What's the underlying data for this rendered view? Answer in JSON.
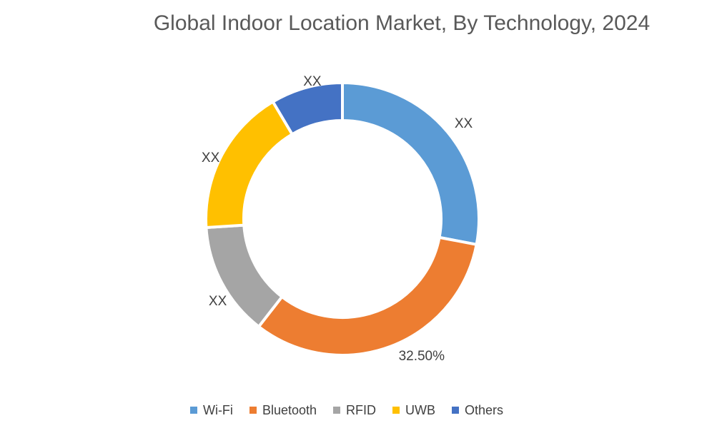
{
  "title": "Global Indoor Location Market, By Technology, 2024",
  "chart_data": {
    "type": "pie",
    "subtype": "donut",
    "title": "Global Indoor Location Market, By Technology, 2024",
    "categories": [
      "Wi-Fi",
      "Bluetooth",
      "RFID",
      "UWB",
      "Others"
    ],
    "values": [
      28.0,
      32.5,
      13.5,
      17.5,
      8.5
    ],
    "values_note": "Only Bluetooth share is printed (32.50%); other slices are masked as XX, values estimated from arc angles",
    "data_labels": [
      "XX",
      "32.50%",
      "XX",
      "XX",
      "XX"
    ],
    "colors": [
      "#5B9BD5",
      "#ED7D31",
      "#A5A5A5",
      "#FFC000",
      "#4472C4"
    ],
    "donut_hole_ratio": 0.75,
    "start_angle_deg": 0,
    "direction": "clockwise",
    "legend_position": "bottom",
    "grid": false
  },
  "legend": {
    "items": [
      {
        "label": "Wi-Fi",
        "color": "#5B9BD5"
      },
      {
        "label": "Bluetooth",
        "color": "#ED7D31"
      },
      {
        "label": "RFID",
        "color": "#A5A5A5"
      },
      {
        "label": "UWB",
        "color": "#FFC000"
      },
      {
        "label": "Others",
        "color": "#4472C4"
      }
    ]
  },
  "styles": {
    "background": "#FFFFFF",
    "title_color": "#595959",
    "data_label_color": "#404040",
    "legend_text_color": "#404040",
    "segment_gap_color": "#FFFFFF"
  }
}
